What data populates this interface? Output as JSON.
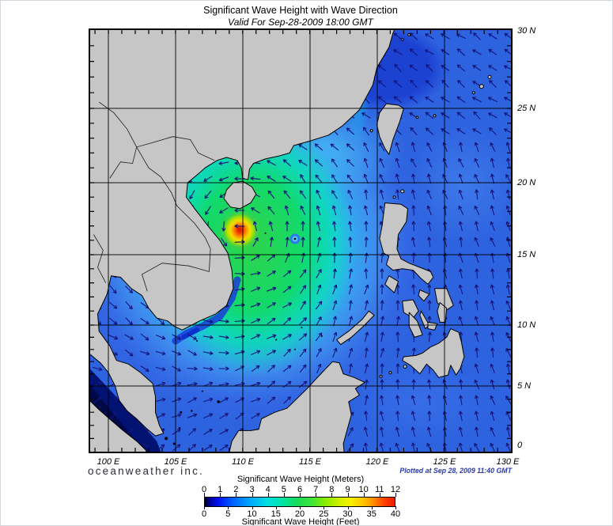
{
  "header": {
    "title": "Significant Wave Height with Wave Direction",
    "subtitle": "Valid For Sep-28-2009 18:00 GMT"
  },
  "axes": {
    "lon_labels": [
      "100 E",
      "105 E",
      "110 E",
      "115 E",
      "120 E",
      "125 E",
      "130 E"
    ],
    "lat_labels": [
      "30 N",
      "25 N",
      "20 N",
      "15 N",
      "10 N",
      "5 N",
      "0"
    ]
  },
  "colorbar": {
    "title_meters": "Significant Wave Height (Meters)",
    "title_feet": "Significant Wave Height (Feet)",
    "meters_ticks": [
      "0",
      "1",
      "2",
      "3",
      "4",
      "5",
      "6",
      "7",
      "8",
      "9",
      "10",
      "11",
      "12"
    ],
    "feet_ticks": [
      "0",
      "5",
      "10",
      "15",
      "20",
      "25",
      "30",
      "35",
      "40"
    ],
    "gradient_stops": [
      {
        "p": 0,
        "c": "#000000"
      },
      {
        "p": 2,
        "c": "#00008c"
      },
      {
        "p": 7,
        "c": "#0010f0"
      },
      {
        "p": 15,
        "c": "#0064ff"
      },
      {
        "p": 24,
        "c": "#00a8ff"
      },
      {
        "p": 33,
        "c": "#00e0e0"
      },
      {
        "p": 41,
        "c": "#00e4a6"
      },
      {
        "p": 48,
        "c": "#14dc5a"
      },
      {
        "p": 56,
        "c": "#3ce43c"
      },
      {
        "p": 63,
        "c": "#84ec00"
      },
      {
        "p": 71,
        "c": "#d2f000"
      },
      {
        "p": 77,
        "c": "#f8ee00"
      },
      {
        "p": 83,
        "c": "#ffc800"
      },
      {
        "p": 89,
        "c": "#ff8c00"
      },
      {
        "p": 94,
        "c": "#ff4600"
      },
      {
        "p": 100,
        "c": "#ee1800"
      }
    ]
  },
  "footer": {
    "logo_text": "oceanweather inc.",
    "plotted_text": "Plotted at Sep 28, 2009 11:40 GMT"
  },
  "colors": {
    "land": "#c6c6c6",
    "coastline": "#000000",
    "sea_base": "#2e63e0",
    "arrow": "#14147a",
    "grid": "#000000",
    "storm_core_red": "#e02000",
    "plotted_text_blue": "#2a3aa8"
  },
  "chart_data": {
    "type": "heatmap",
    "title": "Significant Wave Height with Wave Direction",
    "valid_time": "Sep-28-2009 18:00 GMT",
    "plotted_time": "Sep 28, 2009 11:40 GMT",
    "region": {
      "lon_ticks_deg_e": [
        100,
        105,
        110,
        115,
        120,
        125,
        130
      ],
      "lat_ticks_deg_n": [
        30,
        25,
        20,
        15,
        10,
        5,
        0
      ],
      "grid_interval_deg": 5,
      "projection": "mercator"
    },
    "scale": {
      "units_primary": "Meters",
      "units_secondary": "Feet",
      "range_meters": [
        0,
        12
      ],
      "range_feet": [
        0,
        40
      ]
    },
    "features": [
      {
        "name": "storm-wave-maximum",
        "approx_lon_e": 109.8,
        "approx_lat_n": 16.7,
        "peak_value_meters": 11
      },
      {
        "name": "south-china-sea-green-swath",
        "approx_value_meters": 5
      },
      {
        "name": "open-pacific-east-of-philippines",
        "approx_value_meters": 2
      },
      {
        "name": "gulf-of-tonkin",
        "approx_value_meters": 2.5
      },
      {
        "name": "gulf-of-thailand",
        "approx_value_meters": 1.5
      },
      {
        "name": "malacca-strait-minimum",
        "approx_value_meters": 0.2
      }
    ],
    "vector_overlay": "wave direction arrows, counterclockwise swirl around storm center, NW-ward in open Pacific, NE-ward in far south"
  }
}
